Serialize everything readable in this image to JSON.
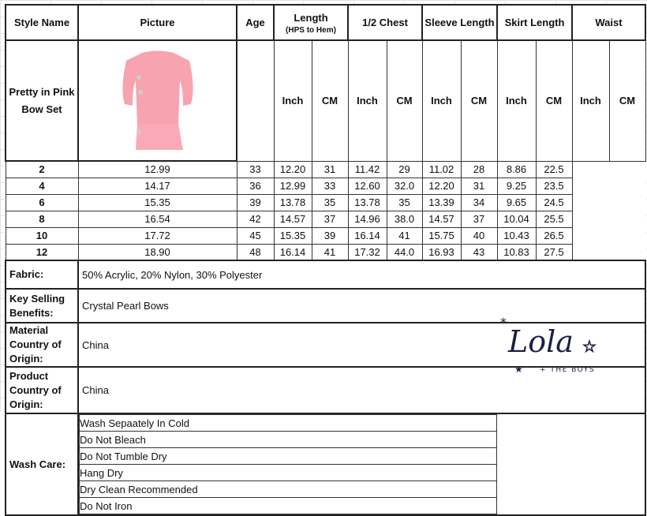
{
  "header": {
    "style_name": "Style Name",
    "picture": "Picture",
    "age": "Age",
    "length": "Length",
    "length_sub": "(HPS to Hem)",
    "chest": "1/2 Chest",
    "sleeve": "Sleeve Length",
    "skirt": "Skirt Length",
    "waist": "Waist",
    "inch": "Inch",
    "cm": "CM"
  },
  "style_name": "Pretty in Pink Bow Set",
  "rows": [
    {
      "age": "2",
      "len_in": "12.99",
      "len_cm": "33",
      "chest_in": "12.20",
      "chest_cm": "31",
      "sleeve_in": "11.42",
      "sleeve_cm": "29",
      "skirt_in": "11.02",
      "skirt_cm": "28",
      "waist_in": "8.86",
      "waist_cm": "22.5"
    },
    {
      "age": "4",
      "len_in": "14.17",
      "len_cm": "36",
      "chest_in": "12.99",
      "chest_cm": "33",
      "sleeve_in": "12.60",
      "sleeve_cm": "32.0",
      "skirt_in": "12.20",
      "skirt_cm": "31",
      "waist_in": "9.25",
      "waist_cm": "23.5"
    },
    {
      "age": "6",
      "len_in": "15.35",
      "len_cm": "39",
      "chest_in": "13.78",
      "chest_cm": "35",
      "sleeve_in": "13.78",
      "sleeve_cm": "35",
      "skirt_in": "13.39",
      "skirt_cm": "34",
      "waist_in": "9.65",
      "waist_cm": "24.5"
    },
    {
      "age": "8",
      "len_in": "16.54",
      "len_cm": "42",
      "chest_in": "14.57",
      "chest_cm": "37",
      "sleeve_in": "14.96",
      "sleeve_cm": "38.0",
      "skirt_in": "14.57",
      "skirt_cm": "37",
      "waist_in": "10.04",
      "waist_cm": "25.5"
    },
    {
      "age": "10",
      "len_in": "17.72",
      "len_cm": "45",
      "chest_in": "15.35",
      "chest_cm": "39",
      "sleeve_in": "16.14",
      "sleeve_cm": "41",
      "skirt_in": "15.75",
      "skirt_cm": "40",
      "waist_in": "10.43",
      "waist_cm": "26.5"
    },
    {
      "age": "12",
      "len_in": "18.90",
      "len_cm": "48",
      "chest_in": "16.14",
      "chest_cm": "41",
      "sleeve_in": "17.32",
      "sleeve_cm": "44.0",
      "skirt_in": "16.93",
      "skirt_cm": "43",
      "waist_in": "10.83",
      "waist_cm": "27.5"
    }
  ],
  "details": {
    "fabric_label": "Fabric:",
    "fabric": "50% Acrylic, 20% Nylon, 30% Polyester",
    "ksb_label": "Key Selling Benefits:",
    "ksb": "Crystal Pearl Bows",
    "material_label": "Material Country of Origin:",
    "material": "China",
    "product_label": "Product Country of Origin:",
    "product": "China",
    "wash_label": "Wash Care:",
    "wash": [
      "Wash Sepaately In Cold",
      "Do Not Bleach",
      "Do Not Tumble Dry",
      "Hang Dry",
      "Dry Clean Recommended",
      "Do Not Iron"
    ]
  },
  "logo": {
    "text": "Lola",
    "sub": "+ THE BOYS",
    "color": "#1b1f45"
  },
  "colors": {
    "garment": "#f7a3b0",
    "border": "#222222"
  }
}
